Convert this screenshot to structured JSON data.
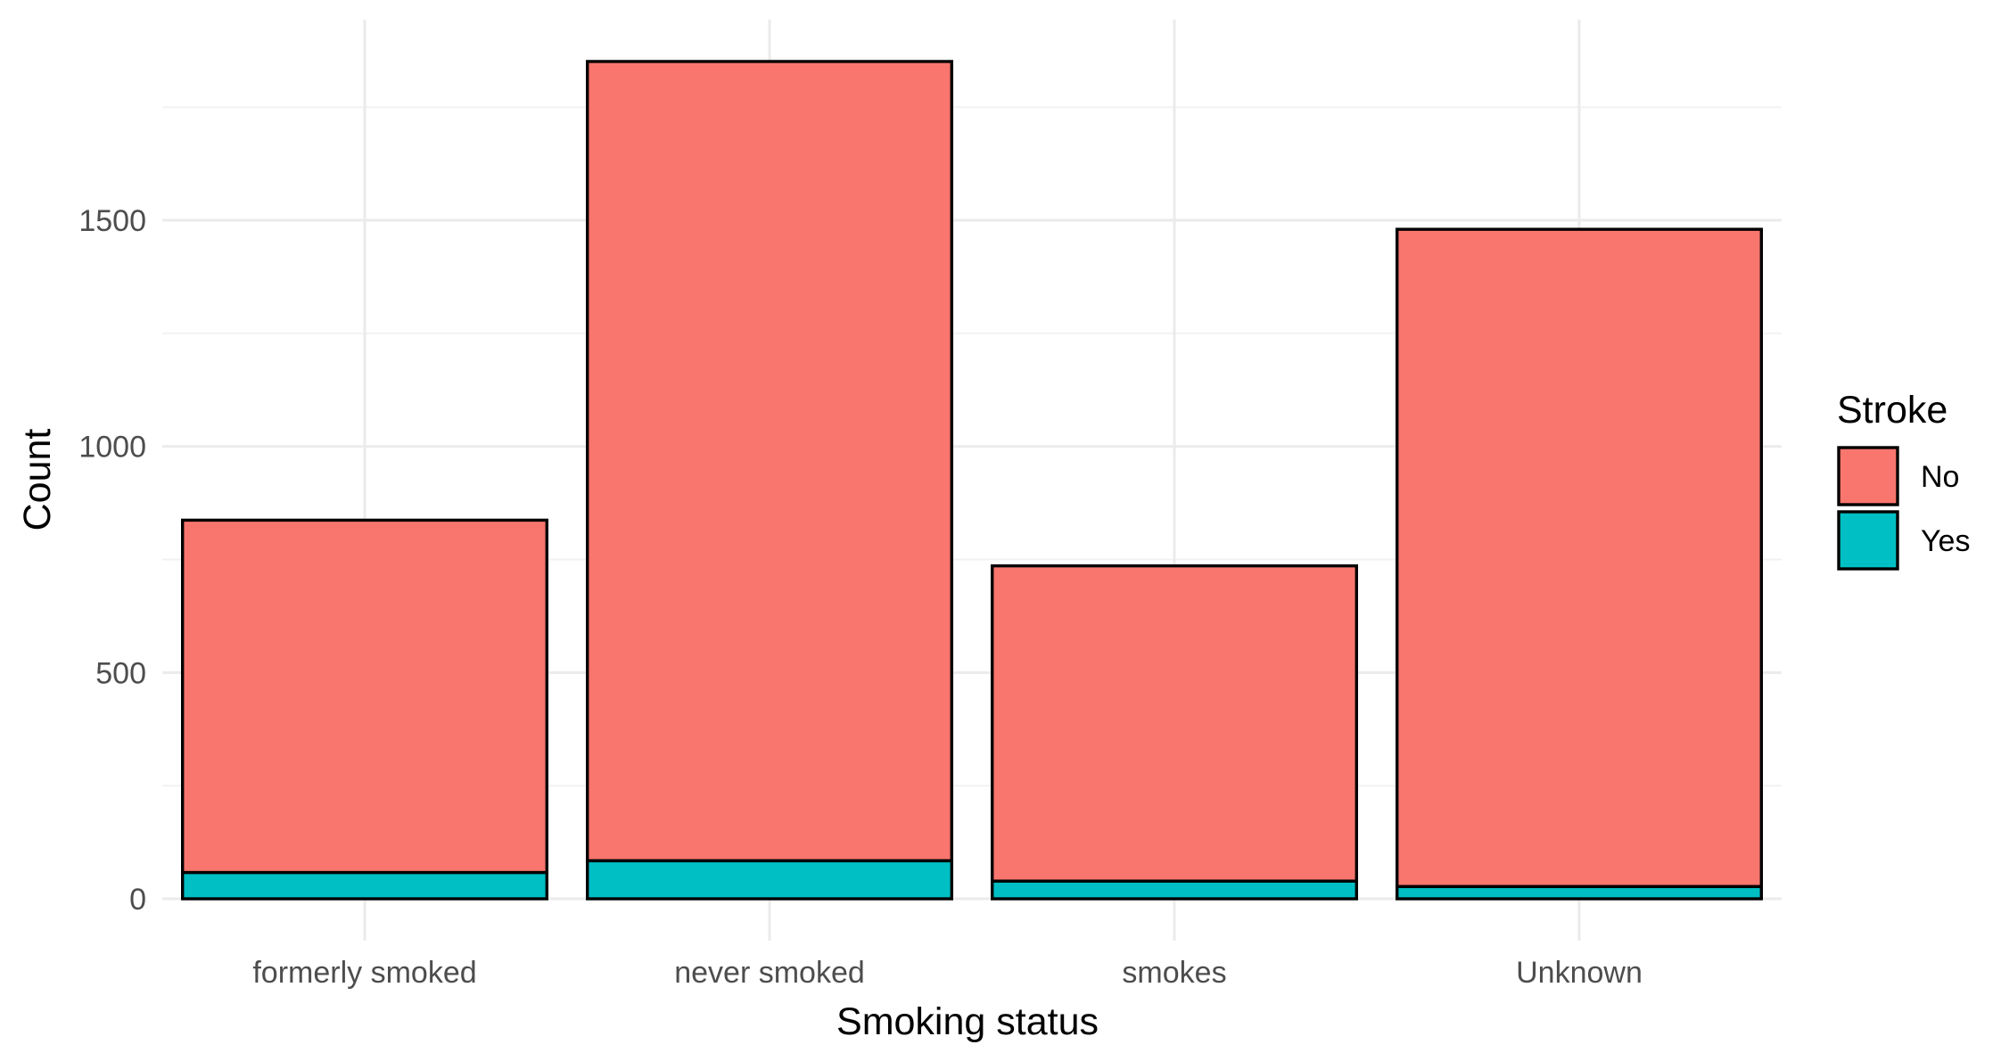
{
  "chart_data": {
    "type": "bar",
    "stacked": true,
    "categories": [
      "formerly smoked",
      "never smoked",
      "smokes",
      "Unknown"
    ],
    "series": [
      {
        "name": "No",
        "values": [
          779,
          1767,
          697,
          1453
        ],
        "color": "#F8766D"
      },
      {
        "name": "Yes",
        "values": [
          58,
          84,
          39,
          27
        ],
        "color": "#00BFC4"
      }
    ],
    "title": "",
    "xlabel": "Smoking status",
    "ylabel": "Count",
    "yticks": [
      0,
      500,
      1000,
      1500
    ],
    "ylim": [
      -92.55,
      1943.55
    ],
    "grid": true,
    "legend": {
      "title": "Stroke",
      "position": "right"
    }
  }
}
